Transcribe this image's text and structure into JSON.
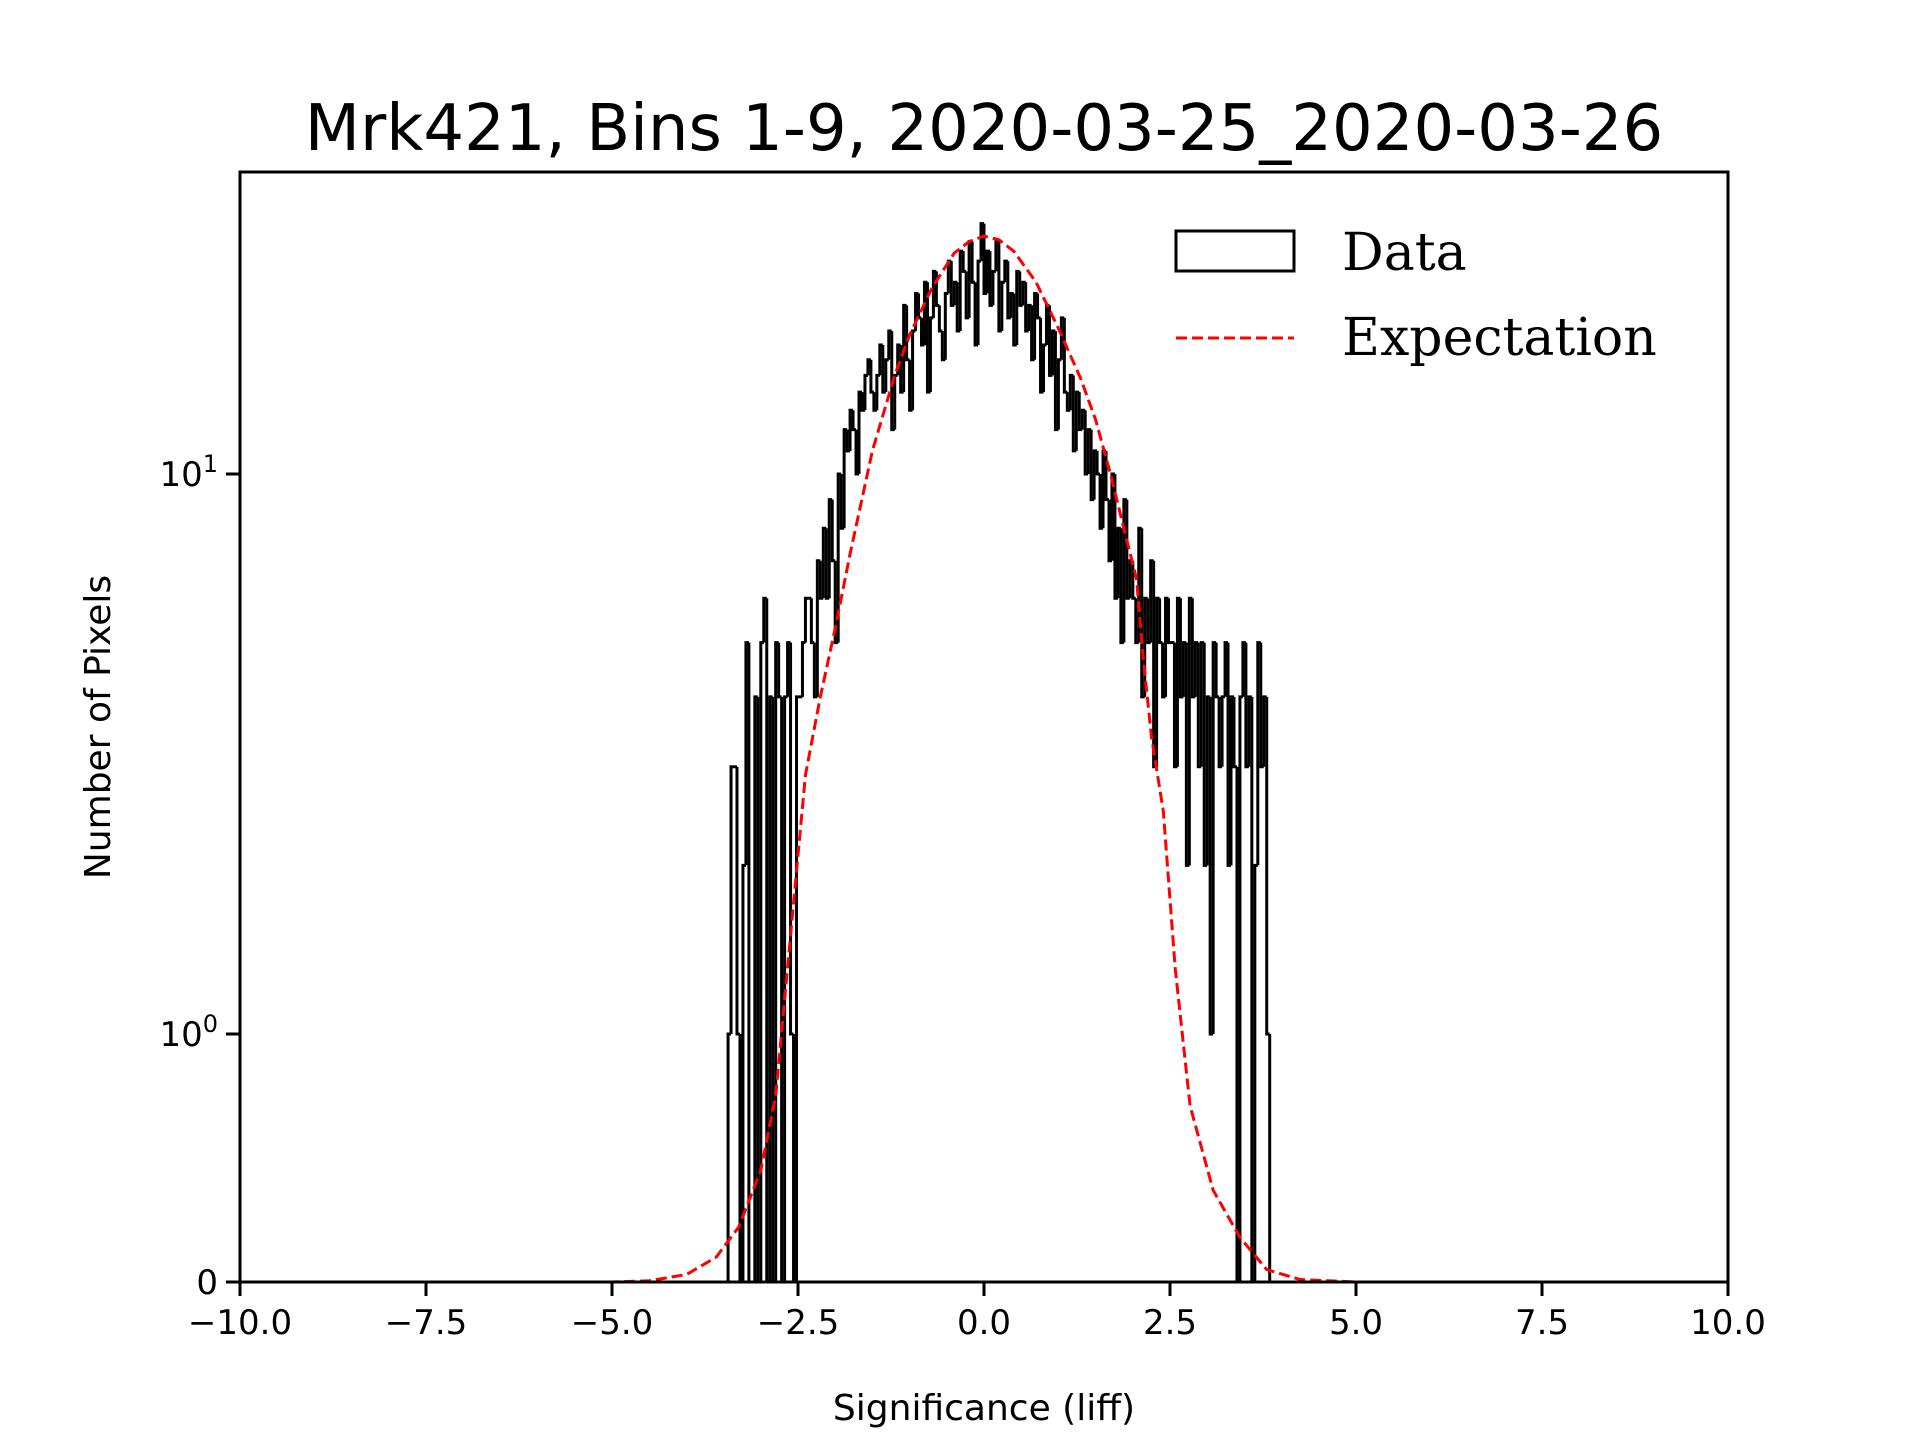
{
  "chart_data": {
    "type": "bar",
    "subtype": "step-histogram",
    "title": "Mrk421, Bins 1-9, 2020-03-25_2020-03-26",
    "xlabel": "Significance (liff)",
    "ylabel": "Number of Pixels",
    "xlim": [
      -10,
      10
    ],
    "ylim": [
      0,
      34.4
    ],
    "yscale": "symlog",
    "symlog_linthresh": 1,
    "grid": false,
    "legend_position": "top-right",
    "x_ticks": [
      -10,
      -7.5,
      -5,
      -2.5,
      0,
      2.5,
      5,
      7.5,
      10
    ],
    "x_tick_labels": [
      "−10.0",
      "−7.5",
      "−5.0",
      "−2.5",
      "0.0",
      "2.5",
      "5.0",
      "7.5",
      "10.0"
    ],
    "y_ticks": [
      {
        "value": 0,
        "base": "0",
        "exp": ""
      },
      {
        "value": 1,
        "base": "10",
        "exp": "0"
      },
      {
        "value": 10,
        "base": "10",
        "exp": "1"
      }
    ],
    "series": [
      {
        "name": "Data",
        "kind": "histogram",
        "color": "#000000",
        "bin_start": -3.44,
        "bin_width": 0.04,
        "values": [
          1,
          3,
          3,
          1,
          0,
          2,
          5,
          0,
          0,
          4,
          0,
          5,
          6,
          0,
          4,
          0,
          5,
          4,
          0,
          4,
          5,
          1,
          0,
          4,
          4,
          5,
          6,
          6,
          5,
          4,
          7,
          6,
          8,
          6,
          9,
          7,
          5,
          10,
          8,
          12,
          11,
          13,
          12,
          10,
          14,
          13,
          15,
          16,
          14,
          13,
          15,
          17,
          14,
          16,
          18,
          12,
          15,
          17,
          14,
          20,
          16,
          13,
          18,
          21,
          19,
          17,
          22,
          14,
          19,
          23,
          20,
          18,
          16,
          21,
          24,
          20,
          22,
          18,
          25,
          23,
          19,
          26,
          22,
          17,
          24,
          28,
          21,
          25,
          20,
          23,
          26,
          18,
          22,
          24,
          19,
          21,
          17,
          23,
          20,
          22,
          18,
          20,
          16,
          21,
          19,
          14,
          17,
          20,
          15,
          18,
          12,
          16,
          19,
          14,
          13,
          15,
          11,
          14,
          12,
          13,
          10,
          12,
          9,
          11,
          10,
          8,
          11,
          9,
          7,
          10,
          6,
          8,
          5,
          9,
          6,
          7,
          6,
          5,
          8,
          4,
          6,
          5,
          7,
          3,
          6,
          5,
          4,
          6,
          5,
          5,
          3,
          6,
          4,
          5,
          2,
          6,
          4,
          5,
          3,
          5,
          2,
          4,
          1,
          5,
          4,
          3,
          4,
          5,
          2,
          4,
          3,
          0,
          4,
          5,
          3,
          4,
          0,
          2,
          5,
          3,
          4,
          1,
          0
        ]
      },
      {
        "name": "Expectation",
        "kind": "line",
        "style": "dashed",
        "color": "#ff0000",
        "x": [
          -10,
          -5,
          -4.5,
          -4.0,
          -3.6,
          -3.3,
          -3.0,
          -2.8,
          -2.6,
          -2.4,
          -2.2,
          -2.0,
          -1.8,
          -1.5,
          -1.2,
          -1.0,
          -0.7,
          -0.4,
          -0.2,
          0.0,
          0.2,
          0.4,
          0.7,
          1.0,
          1.3,
          1.5,
          1.7,
          1.9,
          2.05,
          2.14,
          2.25,
          2.41,
          2.57,
          2.77,
          3.08,
          3.44,
          3.8,
          4.25,
          5,
          10
        ],
        "y": [
          0,
          0,
          0.005,
          0.03,
          0.1,
          0.22,
          0.45,
          0.75,
          1.5,
          2.9,
          4.0,
          5.3,
          7.2,
          11,
          15,
          17.7,
          21.5,
          24.8,
          26,
          26.6,
          26.2,
          25,
          22,
          18.2,
          14.8,
          12.5,
          10,
          7.8,
          6.5,
          4.7,
          3.4,
          2.5,
          1.31,
          0.71,
          0.37,
          0.18,
          0.05,
          0.01,
          0,
          0
        ]
      }
    ],
    "legend": [
      {
        "label": "Data",
        "marker": "open-rectangle",
        "color": "#000000"
      },
      {
        "label": "Expectation",
        "marker": "dashed-line",
        "color": "#ff0000"
      }
    ]
  }
}
